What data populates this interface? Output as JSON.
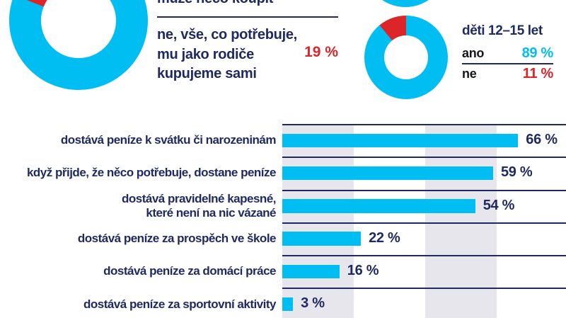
{
  "colors": {
    "cyan": "#00bdf2",
    "red": "#db2528",
    "navy": "#1f2a63",
    "black": "#15161c",
    "band_gray": "#e6e6ec"
  },
  "top_section": {
    "question_cut_line": "může něco koupit",
    "answer_text": "ne, vše, co potřebuje,\nmu jako rodiče\nkupujeme sami",
    "answer_pct": "19 %"
  },
  "age_panel": {
    "title": "děti 12–15 let",
    "rows": [
      {
        "label": "ano",
        "value": "89 %"
      },
      {
        "label": "ne",
        "value": "11 %"
      }
    ]
  },
  "chart_data": [
    {
      "id": "donut-main",
      "type": "pie",
      "style": "donut",
      "labels": [
        "může něco koupit",
        "ne, vše, co potřebuje, mu jako rodiče kupujeme sami"
      ],
      "values": [
        81,
        19
      ],
      "value_labels": [
        "",
        "19 %"
      ],
      "slice_colors": [
        "#00bdf2",
        "#db2528"
      ]
    },
    {
      "id": "donut-deti-12-15",
      "type": "pie",
      "style": "donut",
      "title": "děti 12–15 let",
      "labels": [
        "ano",
        "ne"
      ],
      "values": [
        89,
        11
      ],
      "value_labels": [
        "89 %",
        "11 %"
      ],
      "slice_colors": [
        "#00bdf2",
        "#db2528"
      ]
    },
    {
      "id": "bar-money-sources",
      "type": "bar",
      "orientation": "horizontal",
      "categories": [
        "dostává peníze k svátku či narozeninám",
        "když přijde, že něco potřebuje, dostane peníze",
        "dostává pravidelné kapesné,\nkteré není na nic vázané",
        "dostává peníze za prospěch ve škole",
        "dostává peníze za domácí práce",
        "dostává peníze za sportovní aktivity"
      ],
      "values": [
        66,
        59,
        54,
        22,
        16,
        3
      ],
      "value_labels": [
        "66 %",
        "59 %",
        "54 %",
        "22 %",
        "16 %",
        "3 %"
      ],
      "xlim": [
        0,
        100
      ],
      "grid_bands_pct": [
        [
          0,
          20
        ],
        [
          40,
          60
        ]
      ],
      "bar_color": "#00bdf2",
      "legend": "none"
    }
  ]
}
